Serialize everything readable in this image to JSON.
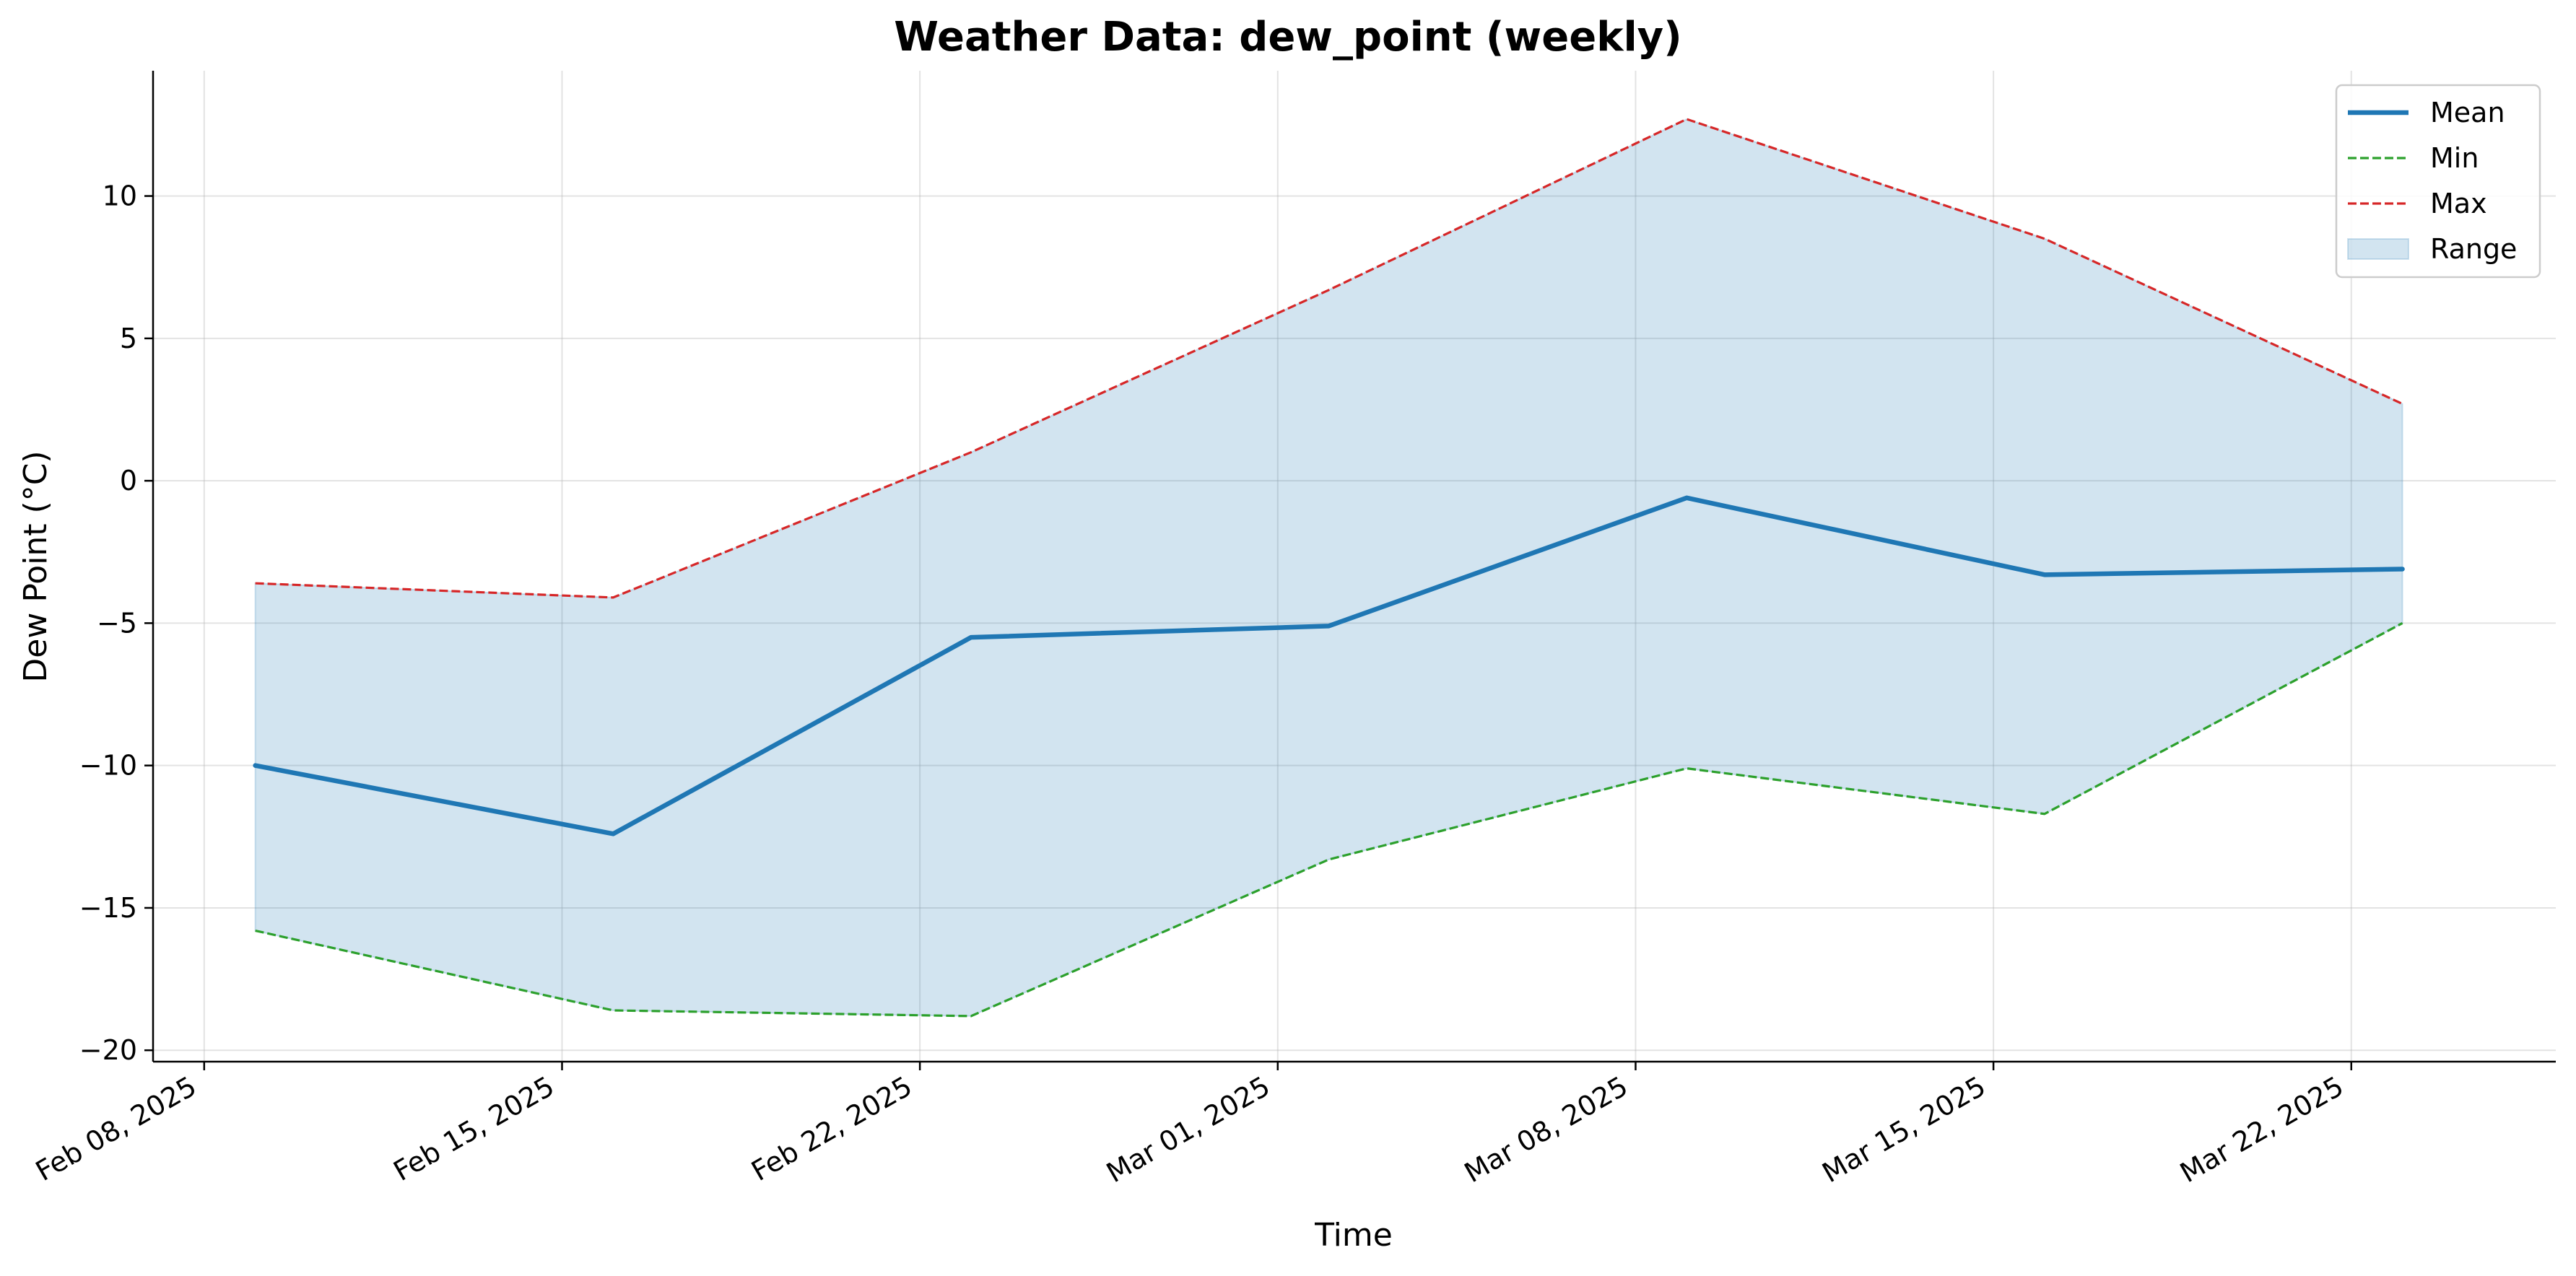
{
  "chart_data": {
    "type": "line",
    "title": "Weather Data: dew_point (weekly)",
    "xlabel": "Time",
    "ylabel": "Dew Point (°C)",
    "x": [
      "2025-02-09",
      "2025-02-16",
      "2025-02-23",
      "2025-03-02",
      "2025-03-09",
      "2025-03-16",
      "2025-03-23"
    ],
    "x_ticks": [
      {
        "date": "2025-02-08",
        "label": "Feb 08, 2025"
      },
      {
        "date": "2025-02-15",
        "label": "Feb 15, 2025"
      },
      {
        "date": "2025-02-22",
        "label": "Feb 22, 2025"
      },
      {
        "date": "2025-03-01",
        "label": "Mar 01, 2025"
      },
      {
        "date": "2025-03-08",
        "label": "Mar 08, 2025"
      },
      {
        "date": "2025-03-15",
        "label": "Mar 15, 2025"
      },
      {
        "date": "2025-03-22",
        "label": "Mar 22, 2025"
      }
    ],
    "xlim": [
      "2025-02-07",
      "2025-03-26"
    ],
    "y_ticks": [
      10,
      5,
      0,
      -5,
      -10,
      -15,
      -20
    ],
    "ylim": [
      -20.4,
      14.4
    ],
    "grid": true,
    "legend_position": "top-right",
    "series": [
      {
        "name": "Mean",
        "style": "solid",
        "color": "#1f77b4",
        "values": [
          -10.0,
          -12.4,
          -5.5,
          -5.1,
          -0.6,
          -3.3,
          -3.1
        ]
      },
      {
        "name": "Min",
        "style": "dashed",
        "color": "#2ca02c",
        "values": [
          -15.8,
          -18.6,
          -18.8,
          -13.3,
          -10.1,
          -11.7,
          -5.0
        ]
      },
      {
        "name": "Max",
        "style": "dashed",
        "color": "#d62728",
        "values": [
          -3.6,
          -4.1,
          1.0,
          6.7,
          12.7,
          8.5,
          2.7
        ]
      }
    ],
    "range": {
      "name": "Range",
      "color": "#1f77b4",
      "between": [
        "Min",
        "Max"
      ]
    }
  }
}
